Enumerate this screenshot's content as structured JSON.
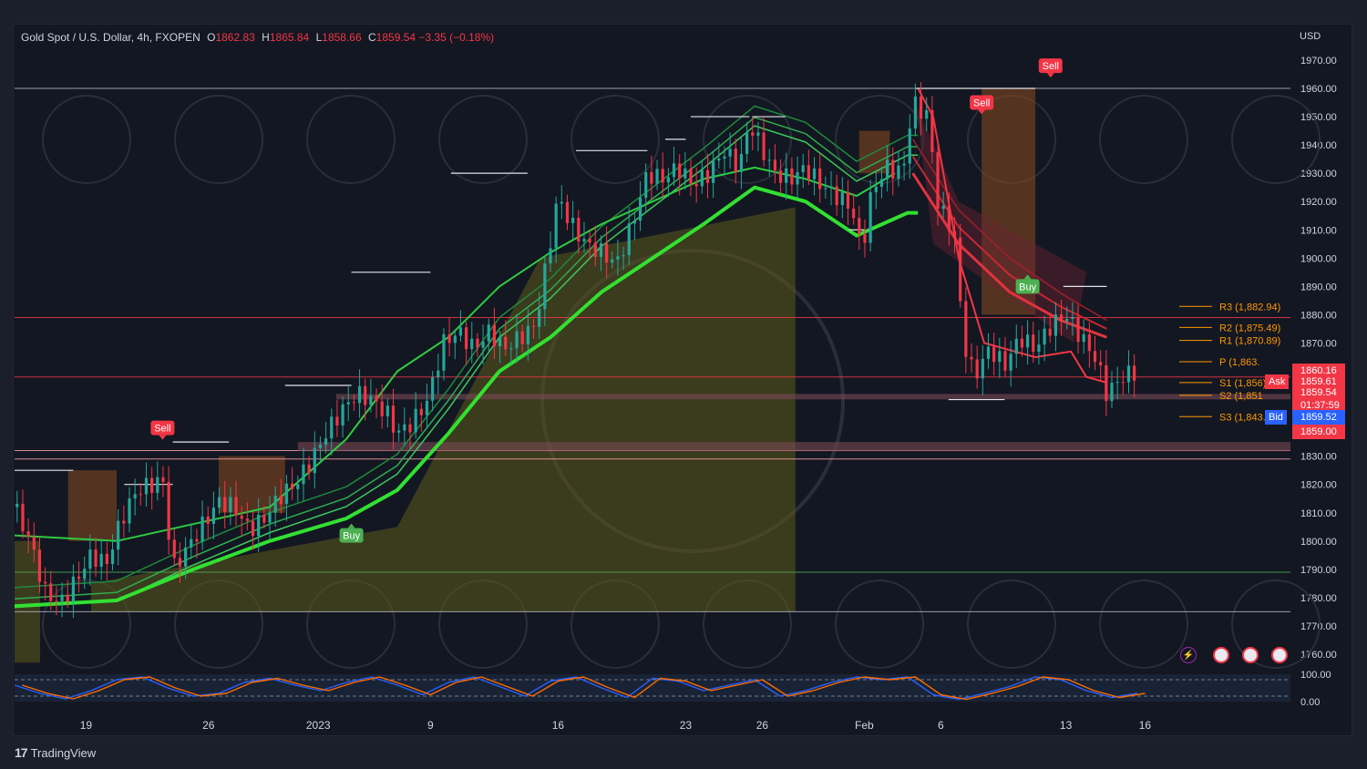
{
  "header": {
    "symbol": "Gold Spot / U.S. Dollar, 4h, FXOPEN",
    "open_label": "O",
    "open": "1862.83",
    "high_label": "H",
    "high": "1865.84",
    "low_label": "L",
    "low": "1858.66",
    "close_label": "C",
    "close": "1859.54",
    "change": "−3.35 (−0.18%)",
    "currency": "USD"
  },
  "price_tags": [
    {
      "label": "1860.16",
      "price": 1860.16,
      "color": "#f23645"
    },
    {
      "label": "1859.61",
      "price": 1856.3,
      "color": "#f23645",
      "tag": "Ask"
    },
    {
      "label": "1859.54",
      "price": 1852.0,
      "color": "#f23645",
      "sub": "01:37:59"
    },
    {
      "label": "1859.52",
      "price": 1843.8,
      "color": "#2962ff",
      "tag": "Bid"
    },
    {
      "label": "1859.00",
      "price": 1838.5,
      "color": "#f23645"
    }
  ],
  "pivots": [
    {
      "label": "R3 (1,882.94)",
      "price": 1882.94
    },
    {
      "label": "R2 (1,875.49)",
      "price": 1875.49
    },
    {
      "label": "R1 (1,870.89)",
      "price": 1870.89
    },
    {
      "label": "P (1,863.",
      "price": 1863.4
    },
    {
      "label": "S1 (1,856)",
      "price": 1856.0
    },
    {
      "label": "S2 (1,851",
      "price": 1851.5
    },
    {
      "label": "S3 (1,843.96)",
      "price": 1843.96
    }
  ],
  "signals": [
    {
      "label": "Sell",
      "type": "sell",
      "day": 5.8,
      "price": 1840
    },
    {
      "label": "Buy",
      "type": "buy",
      "day": 13.2,
      "price": 1802
    },
    {
      "label": "Sell",
      "type": "sell",
      "day": 37.9,
      "price": 1955
    },
    {
      "label": "Buy",
      "type": "buy",
      "day": 39.7,
      "price": 1890
    },
    {
      "label": "Sell",
      "type": "sell",
      "day": 40.6,
      "price": 1968
    }
  ],
  "x_ticks": [
    "19",
    "26",
    "2023",
    "9",
    "16",
    "23",
    "26",
    "Feb",
    "6",
    "13",
    "16"
  ],
  "footer": {
    "brand": "TradingView"
  },
  "chart_data": {
    "type": "candlestick",
    "title": "Gold Spot / U.S. Dollar, 4h, FXOPEN",
    "ylabel": "USD",
    "ylim": [
      1755,
      1978
    ],
    "y_ticks": [
      1760,
      1770,
      1780,
      1790,
      1800,
      1810,
      1820,
      1830,
      1840,
      1850,
      1860,
      1870,
      1880,
      1890,
      1900,
      1910,
      1920,
      1930,
      1940,
      1950,
      1960,
      1970
    ],
    "x_range_days": [
      0,
      50
    ],
    "x_tick_days": [
      2.8,
      7.6,
      11.9,
      16.3,
      21.3,
      26.3,
      29.3,
      33.3,
      36.3,
      41.2,
      44.3
    ],
    "close_path": [
      [
        0,
        1812
      ],
      [
        0.6,
        1800
      ],
      [
        1.2,
        1782
      ],
      [
        1.8,
        1778
      ],
      [
        2.4,
        1786
      ],
      [
        3,
        1795
      ],
      [
        3.6,
        1792
      ],
      [
        4.2,
        1808
      ],
      [
        4.8,
        1818
      ],
      [
        5.4,
        1820
      ],
      [
        5.8,
        1822
      ],
      [
        6.2,
        1790
      ],
      [
        6.8,
        1798
      ],
      [
        7.4,
        1806
      ],
      [
        8,
        1814
      ],
      [
        8.6,
        1812
      ],
      [
        9.2,
        1804
      ],
      [
        9.8,
        1808
      ],
      [
        10.4,
        1816
      ],
      [
        11,
        1820
      ],
      [
        11.6,
        1828
      ],
      [
        12.2,
        1838
      ],
      [
        12.8,
        1846
      ],
      [
        13.4,
        1852
      ],
      [
        14,
        1850
      ],
      [
        14.6,
        1845
      ],
      [
        15,
        1838
      ],
      [
        15.6,
        1842
      ],
      [
        16.2,
        1850
      ],
      [
        16.8,
        1870
      ],
      [
        17.4,
        1874
      ],
      [
        18,
        1868
      ],
      [
        18.6,
        1874
      ],
      [
        19.2,
        1868
      ],
      [
        19.8,
        1872
      ],
      [
        20.4,
        1876
      ],
      [
        20.8,
        1896
      ],
      [
        21.3,
        1922
      ],
      [
        21.8,
        1912
      ],
      [
        22.4,
        1905
      ],
      [
        23,
        1902
      ],
      [
        23.6,
        1898
      ],
      [
        24.2,
        1912
      ],
      [
        24.8,
        1930
      ],
      [
        25.4,
        1928
      ],
      [
        26,
        1932
      ],
      [
        26.6,
        1926
      ],
      [
        27.2,
        1930
      ],
      [
        27.8,
        1938
      ],
      [
        28.4,
        1932
      ],
      [
        28.8,
        1948
      ],
      [
        29.2,
        1940
      ],
      [
        29.8,
        1930
      ],
      [
        30.4,
        1928
      ],
      [
        31,
        1932
      ],
      [
        31.6,
        1926
      ],
      [
        32.2,
        1922
      ],
      [
        32.8,
        1918
      ],
      [
        33.2,
        1902
      ],
      [
        33.6,
        1924
      ],
      [
        34.2,
        1932
      ],
      [
        34.8,
        1930
      ],
      [
        35.2,
        1955
      ],
      [
        35.8,
        1950
      ],
      [
        36.2,
        1918
      ],
      [
        36.8,
        1910
      ],
      [
        37.2,
        1870
      ],
      [
        37.6,
        1858
      ],
      [
        38.2,
        1868
      ],
      [
        38.8,
        1862
      ],
      [
        39.4,
        1872
      ],
      [
        40,
        1868
      ],
      [
        40.6,
        1876
      ],
      [
        41.2,
        1880
      ],
      [
        41.8,
        1872
      ],
      [
        42.4,
        1864
      ],
      [
        42.8,
        1852
      ],
      [
        43.4,
        1858
      ],
      [
        44,
        1860
      ]
    ],
    "ema_long": [
      [
        0,
        1777
      ],
      [
        4,
        1779
      ],
      [
        7,
        1790
      ],
      [
        10,
        1800
      ],
      [
        13,
        1808
      ],
      [
        15,
        1818
      ],
      [
        17,
        1838
      ],
      [
        19,
        1860
      ],
      [
        21,
        1872
      ],
      [
        23,
        1888
      ],
      [
        25,
        1900
      ],
      [
        27,
        1912
      ],
      [
        29,
        1925
      ],
      [
        31,
        1920
      ],
      [
        33,
        1908
      ],
      [
        35,
        1916
      ],
      [
        35.4,
        1916
      ]
    ],
    "ema_short": [
      [
        0,
        1802
      ],
      [
        4,
        1800
      ],
      [
        7,
        1806
      ],
      [
        10,
        1812
      ],
      [
        13,
        1836
      ],
      [
        15,
        1860
      ],
      [
        17,
        1872
      ],
      [
        19,
        1890
      ],
      [
        21,
        1902
      ],
      [
        23,
        1912
      ],
      [
        25,
        1920
      ],
      [
        27,
        1928
      ],
      [
        29,
        1932
      ],
      [
        31,
        1928
      ],
      [
        33,
        1922
      ],
      [
        34.5,
        1930
      ],
      [
        36,
        1920
      ],
      [
        38,
        1900
      ],
      [
        40,
        1890
      ],
      [
        42,
        1884
      ],
      [
        44,
        1874
      ]
    ],
    "oscillator": [
      [
        0,
        60
      ],
      [
        1,
        30
      ],
      [
        2,
        10
      ],
      [
        3,
        40
      ],
      [
        4,
        80
      ],
      [
        5,
        90
      ],
      [
        6,
        50
      ],
      [
        7,
        20
      ],
      [
        8,
        30
      ],
      [
        9,
        70
      ],
      [
        10,
        85
      ],
      [
        11,
        60
      ],
      [
        12,
        40
      ],
      [
        13,
        70
      ],
      [
        14,
        90
      ],
      [
        15,
        60
      ],
      [
        16,
        25
      ],
      [
        17,
        70
      ],
      [
        18,
        90
      ],
      [
        19,
        55
      ],
      [
        20,
        20
      ],
      [
        21,
        75
      ],
      [
        22,
        90
      ],
      [
        23,
        50
      ],
      [
        24,
        15
      ],
      [
        25,
        85
      ],
      [
        26,
        75
      ],
      [
        27,
        40
      ],
      [
        28,
        60
      ],
      [
        29,
        80
      ],
      [
        30,
        20
      ],
      [
        31,
        40
      ],
      [
        32,
        70
      ],
      [
        33,
        90
      ],
      [
        34,
        80
      ],
      [
        35,
        90
      ],
      [
        36,
        25
      ],
      [
        37,
        8
      ],
      [
        38,
        30
      ],
      [
        39,
        55
      ],
      [
        40,
        90
      ],
      [
        41,
        80
      ],
      [
        42,
        40
      ],
      [
        43,
        15
      ],
      [
        44,
        30
      ]
    ],
    "horizontal_levels": [
      1960,
      1879,
      1858,
      1832,
      1829,
      1789,
      1775
    ]
  }
}
